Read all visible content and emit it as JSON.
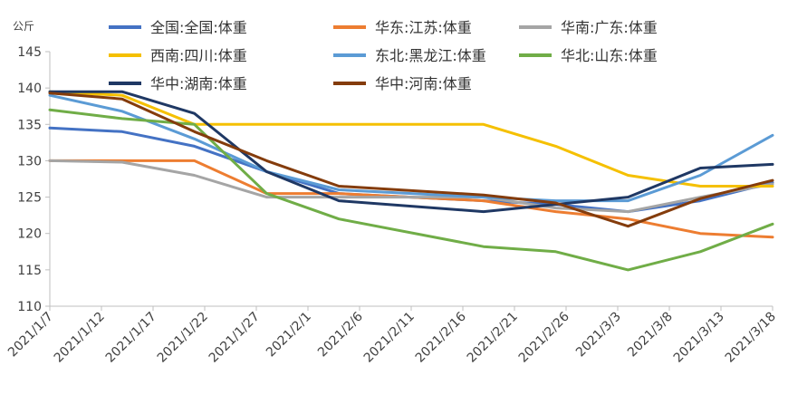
{
  "chart_data": {
    "type": "line",
    "title": "",
    "unit_label": "公斤",
    "xlabel": "",
    "ylabel": "",
    "ylim": [
      110,
      145
    ],
    "y_ticks": [
      110,
      115,
      120,
      125,
      130,
      135,
      140,
      145
    ],
    "x_ticks": [
      "2021/1/7",
      "2021/1/12",
      "2021/1/17",
      "2021/1/22",
      "2021/1/27",
      "2021/2/1",
      "2021/2/6",
      "2021/2/11",
      "2021/2/16",
      "2021/2/21",
      "2021/2/26",
      "2021/3/3",
      "2021/3/8",
      "2021/3/13",
      "2021/3/18"
    ],
    "grid": false,
    "legend_position": "top",
    "series": [
      {
        "name": "全国:全国:体重",
        "color": "#4472C4",
        "points": [
          [
            "2021/1/7",
            134.5
          ],
          [
            "2021/1/14",
            134.0
          ],
          [
            "2021/1/21",
            132.0
          ],
          [
            "2021/1/28",
            128.5
          ],
          [
            "2021/2/4",
            125.5
          ],
          [
            "2021/2/18",
            124.5
          ],
          [
            "2021/2/25",
            124.0
          ],
          [
            "2021/3/4",
            123.0
          ],
          [
            "2021/3/11",
            124.5
          ],
          [
            "2021/3/18",
            127.0
          ]
        ]
      },
      {
        "name": "华东:江苏:体重",
        "color": "#ED7D31",
        "points": [
          [
            "2021/1/7",
            130.0
          ],
          [
            "2021/1/14",
            130.0
          ],
          [
            "2021/1/21",
            130.0
          ],
          [
            "2021/1/28",
            125.5
          ],
          [
            "2021/2/4",
            125.5
          ],
          [
            "2021/2/18",
            124.5
          ],
          [
            "2021/2/25",
            123.0
          ],
          [
            "2021/3/4",
            122.0
          ],
          [
            "2021/3/11",
            120.0
          ],
          [
            "2021/3/18",
            119.5
          ]
        ]
      },
      {
        "name": "华南:广东:体重",
        "color": "#A5A5A5",
        "points": [
          [
            "2021/1/7",
            130.0
          ],
          [
            "2021/1/14",
            129.8
          ],
          [
            "2021/1/21",
            128.0
          ],
          [
            "2021/1/28",
            125.0
          ],
          [
            "2021/2/4",
            125.0
          ],
          [
            "2021/2/18",
            125.0
          ],
          [
            "2021/2/25",
            123.5
          ],
          [
            "2021/3/4",
            123.0
          ],
          [
            "2021/3/11",
            125.0
          ],
          [
            "2021/3/18",
            126.8
          ]
        ]
      },
      {
        "name": "西南:四川:体重",
        "color": "#F5C000",
        "points": [
          [
            "2021/1/7",
            139.5
          ],
          [
            "2021/1/14",
            139.0
          ],
          [
            "2021/1/21",
            135.0
          ],
          [
            "2021/1/28",
            135.0
          ],
          [
            "2021/2/4",
            135.0
          ],
          [
            "2021/2/18",
            135.0
          ],
          [
            "2021/2/25",
            132.0
          ],
          [
            "2021/3/4",
            128.0
          ],
          [
            "2021/3/11",
            126.5
          ],
          [
            "2021/3/18",
            126.5
          ]
        ]
      },
      {
        "name": "东北:黑龙江:体重",
        "color": "#5B9BD5",
        "points": [
          [
            "2021/1/7",
            139.0
          ],
          [
            "2021/1/14",
            136.8
          ],
          [
            "2021/1/21",
            133.0
          ],
          [
            "2021/1/28",
            128.5
          ],
          [
            "2021/2/4",
            126.0
          ],
          [
            "2021/2/18",
            125.0
          ],
          [
            "2021/2/25",
            124.5
          ],
          [
            "2021/3/4",
            124.5
          ],
          [
            "2021/3/11",
            128.0
          ],
          [
            "2021/3/18",
            133.5
          ]
        ]
      },
      {
        "name": "华北:山东:体重",
        "color": "#70AD47",
        "points": [
          [
            "2021/1/7",
            137.0
          ],
          [
            "2021/1/14",
            135.8
          ],
          [
            "2021/1/21",
            135.0
          ],
          [
            "2021/1/28",
            125.5
          ],
          [
            "2021/2/4",
            122.0
          ],
          [
            "2021/2/18",
            118.2
          ],
          [
            "2021/2/25",
            117.5
          ],
          [
            "2021/3/4",
            115.0
          ],
          [
            "2021/3/11",
            117.5
          ],
          [
            "2021/3/18",
            121.3
          ]
        ]
      },
      {
        "name": "华中:湖南:体重",
        "color": "#1F3864",
        "points": [
          [
            "2021/1/7",
            139.5
          ],
          [
            "2021/1/14",
            139.5
          ],
          [
            "2021/1/21",
            136.5
          ],
          [
            "2021/1/28",
            128.5
          ],
          [
            "2021/2/4",
            124.5
          ],
          [
            "2021/2/18",
            123.0
          ],
          [
            "2021/2/25",
            124.0
          ],
          [
            "2021/3/4",
            125.0
          ],
          [
            "2021/3/11",
            129.0
          ],
          [
            "2021/3/18",
            129.5
          ]
        ]
      },
      {
        "name": "华中:河南:体重",
        "color": "#843C0C",
        "points": [
          [
            "2021/1/7",
            139.3
          ],
          [
            "2021/1/14",
            138.5
          ],
          [
            "2021/1/21",
            134.0
          ],
          [
            "2021/1/28",
            130.0
          ],
          [
            "2021/2/4",
            126.5
          ],
          [
            "2021/2/18",
            125.3
          ],
          [
            "2021/2/25",
            124.2
          ],
          [
            "2021/3/4",
            121.0
          ],
          [
            "2021/3/11",
            124.8
          ],
          [
            "2021/3/18",
            127.3
          ]
        ]
      }
    ]
  }
}
